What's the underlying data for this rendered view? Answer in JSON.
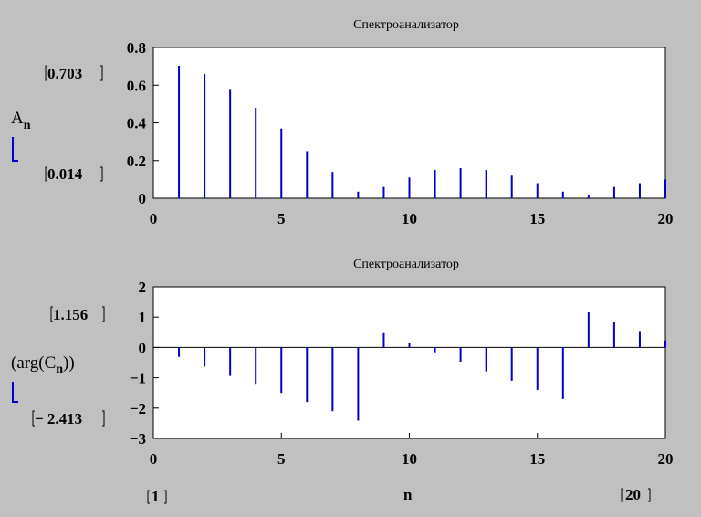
{
  "chart_data": [
    {
      "type": "bar",
      "title": "Спектроанализатор",
      "ylabel_main": "A",
      "ylabel_sub": "n",
      "ymax_label": "0.703",
      "ymin_label": "0.014",
      "xlim": [
        0,
        20
      ],
      "ylim": [
        0,
        0.8
      ],
      "xticks": [
        "0",
        "5",
        "10",
        "15",
        "20"
      ],
      "yticks": [
        "0",
        "0.2",
        "0.4",
        "0.6",
        "0.8"
      ],
      "x": [
        1,
        2,
        3,
        4,
        5,
        6,
        7,
        8,
        9,
        10,
        11,
        12,
        13,
        14,
        15,
        16,
        17,
        18,
        19,
        20
      ],
      "values": [
        0.703,
        0.66,
        0.58,
        0.48,
        0.37,
        0.25,
        0.14,
        0.035,
        0.06,
        0.11,
        0.15,
        0.16,
        0.15,
        0.12,
        0.08,
        0.035,
        0.014,
        0.06,
        0.08,
        0.1
      ],
      "color": "#0000cc"
    },
    {
      "type": "bar",
      "title": "Спектроанализатор",
      "ylabel": "(arg(C",
      "ylabel_sub": "n",
      "ylabel_end": "))",
      "ymax_label": "1.156",
      "ymin_label": "− 2.413",
      "xlim": [
        0,
        20
      ],
      "ylim": [
        -3,
        2
      ],
      "xticks": [
        "0",
        "5",
        "10",
        "15",
        "20"
      ],
      "yticks": [
        "2",
        "1",
        "0",
        "−1",
        "−2",
        "−3"
      ],
      "x": [
        1,
        2,
        3,
        4,
        5,
        6,
        7,
        8,
        9,
        10,
        11,
        12,
        13,
        14,
        15,
        16,
        17,
        18,
        19,
        20
      ],
      "values": [
        -0.31,
        -0.63,
        -0.94,
        -1.2,
        -1.5,
        -1.8,
        -2.1,
        -2.413,
        0.47,
        0.16,
        -0.16,
        -0.47,
        -0.79,
        -1.1,
        -1.4,
        -1.7,
        1.156,
        0.85,
        0.54,
        0.23
      ],
      "color": "#0000cc",
      "xlabel": "n",
      "xmin_label": "1",
      "xmax_label": "20"
    }
  ]
}
